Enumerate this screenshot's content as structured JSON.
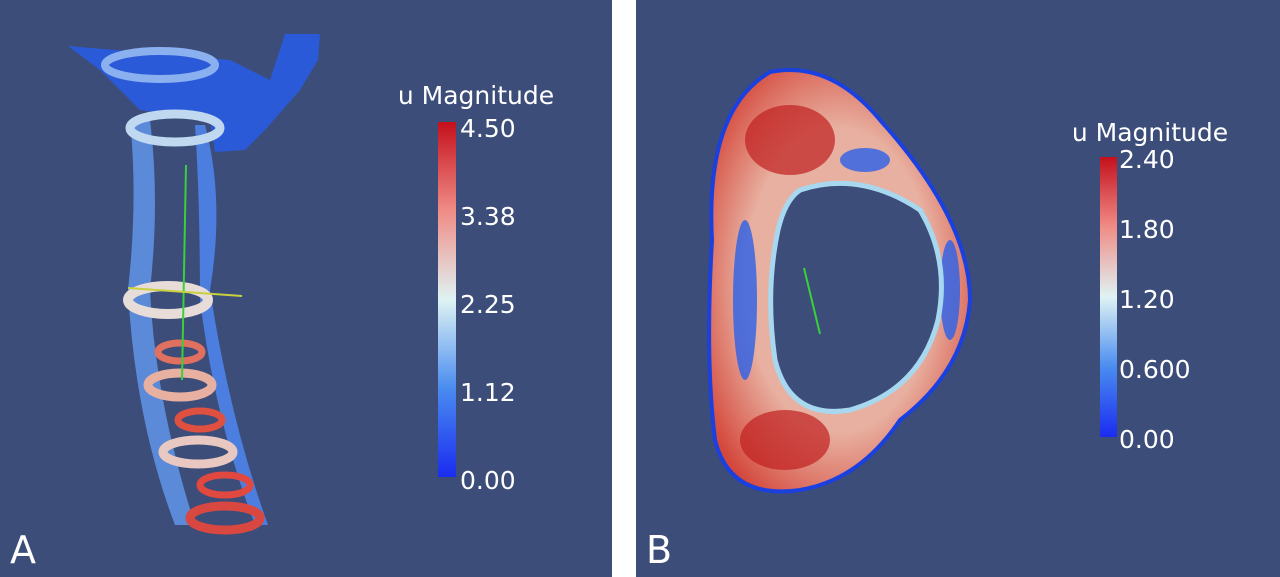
{
  "panels": [
    {
      "letter": "A",
      "colorbar": {
        "title": "u Magnitude",
        "ticks": [
          "4.50",
          "3.38",
          "2.25",
          "1.12",
          "0.00"
        ]
      }
    },
    {
      "letter": "B",
      "colorbar": {
        "title": "u Magnitude",
        "ticks": [
          "2.40",
          "1.80",
          "1.20",
          "0.600",
          "0.00"
        ]
      }
    }
  ]
}
